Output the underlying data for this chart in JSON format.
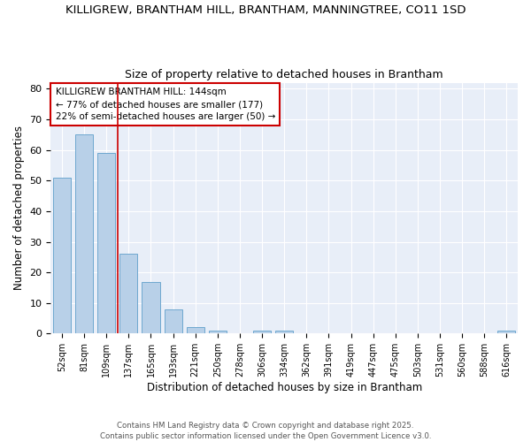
{
  "title_line1": "KILLIGREW, BRANTHAM HILL, BRANTHAM, MANNINGTREE, CO11 1SD",
  "title_line2": "Size of property relative to detached houses in Brantham",
  "xlabel": "Distribution of detached houses by size in Brantham",
  "ylabel": "Number of detached properties",
  "bar_color": "#b8d0e8",
  "bar_edge_color": "#6fa8d0",
  "background_color": "#e8eef8",
  "vline_color": "#cc0000",
  "vline_x_idx": 2.5,
  "annotation_title": "KILLIGREW BRANTHAM HILL: 144sqm",
  "annotation_line2": "← 77% of detached houses are smaller (177)",
  "annotation_line3": "22% of semi-detached houses are larger (50) →",
  "categories": [
    "52sqm",
    "81sqm",
    "109sqm",
    "137sqm",
    "165sqm",
    "193sqm",
    "221sqm",
    "250sqm",
    "278sqm",
    "306sqm",
    "334sqm",
    "362sqm",
    "391sqm",
    "419sqm",
    "447sqm",
    "475sqm",
    "503sqm",
    "531sqm",
    "560sqm",
    "588sqm",
    "616sqm"
  ],
  "values": [
    51,
    65,
    59,
    26,
    17,
    8,
    2,
    1,
    0,
    1,
    1,
    0,
    0,
    0,
    0,
    0,
    0,
    0,
    0,
    0,
    1
  ],
  "ylim": [
    0,
    82
  ],
  "yticks": [
    0,
    10,
    20,
    30,
    40,
    50,
    60,
    70,
    80
  ],
  "footnote_line1": "Contains HM Land Registry data © Crown copyright and database right 2025.",
  "footnote_line2": "Contains public sector information licensed under the Open Government Licence v3.0."
}
